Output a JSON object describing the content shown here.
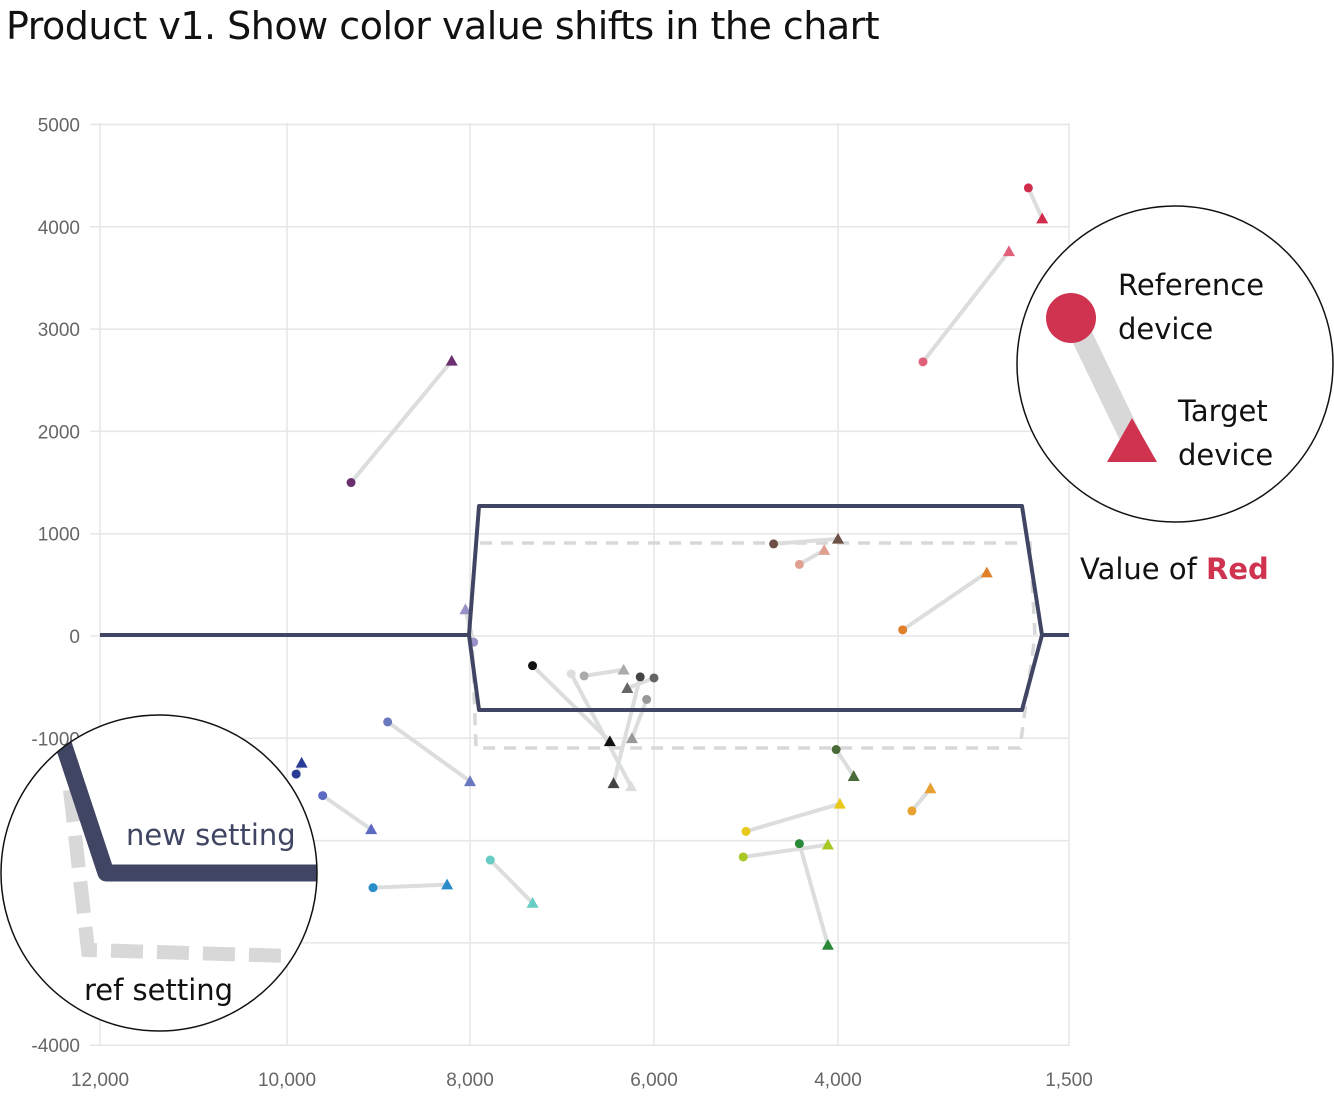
{
  "title": "Product v1. Show color value shifts in the chart",
  "chart_data": {
    "type": "scatter",
    "x_axis": {
      "ticks": [
        12000,
        10000,
        8000,
        6000,
        4000,
        1500
      ],
      "tick_labels": [
        "12,000",
        "10,000",
        "8,000",
        "6,000",
        "4,000",
        "1,500"
      ],
      "reversed": true
    },
    "y_axis": {
      "ticks": [
        5000,
        4000,
        3000,
        2000,
        1000,
        0,
        -1000,
        -4000
      ],
      "tick_labels": [
        "5000",
        "4000",
        "3000",
        "2000",
        "1000",
        "0",
        "-1000",
        "-4000"
      ],
      "ylim": [
        -4000,
        5000
      ]
    },
    "grid": true,
    "shifts": [
      {
        "ref": [
          1940,
          4380
        ],
        "target": [
          1790,
          4080
        ],
        "color": "#d02c4c"
      },
      {
        "ref": [
          3080,
          2680
        ],
        "target": [
          2150,
          3760
        ],
        "color": "#e0607a"
      },
      {
        "ref": [
          9300,
          1500
        ],
        "target": [
          8200,
          2690
        ],
        "color": "#6a2f6e"
      },
      {
        "ref": [
          4700,
          900
        ],
        "target": [
          4000,
          950
        ],
        "color": "#6d5048"
      },
      {
        "ref": [
          4420,
          700
        ],
        "target": [
          4150,
          840
        ],
        "color": "#e0a090"
      },
      {
        "ref": [
          3300,
          60
        ],
        "target": [
          2390,
          620
        ],
        "color": "#e0802a"
      },
      {
        "ref": [
          7960,
          -60
        ],
        "target": [
          8050,
          260
        ],
        "color": "#9a90c8"
      },
      {
        "ref": [
          7320,
          -290
        ],
        "target": [
          6480,
          -1030
        ],
        "color": "#111111"
      },
      {
        "ref": [
          6900,
          -370
        ],
        "target": [
          6250,
          -1470
        ],
        "color": "#dddddd"
      },
      {
        "ref": [
          6760,
          -390
        ],
        "target": [
          6330,
          -330
        ],
        "color": "#aaaaaa"
      },
      {
        "ref": [
          6150,
          -400
        ],
        "target": [
          6440,
          -1440
        ],
        "color": "#444444"
      },
      {
        "ref": [
          6000,
          -410
        ],
        "target": [
          6290,
          -510
        ],
        "color": "#666666"
      },
      {
        "ref": [
          6080,
          -620
        ],
        "target": [
          6240,
          -1000
        ],
        "color": "#999999"
      },
      {
        "ref": [
          8900,
          -840
        ],
        "target": [
          8000,
          -1420
        ],
        "color": "#6a78c0"
      },
      {
        "ref": [
          9900,
          -1350
        ],
        "target": [
          9840,
          -1240
        ],
        "color": "#283c96"
      },
      {
        "ref": [
          9610,
          -1560
        ],
        "target": [
          9080,
          -1890
        ],
        "color": "#5c6ac4"
      },
      {
        "ref": [
          9060,
          -2460
        ],
        "target": [
          8250,
          -2430
        ],
        "color": "#2a8cc8"
      },
      {
        "ref": [
          7780,
          -2190
        ],
        "target": [
          7320,
          -2610
        ],
        "color": "#66ccc4"
      },
      {
        "ref": [
          4020,
          -1110
        ],
        "target": [
          3830,
          -1370
        ],
        "color": "#4a6a3a"
      },
      {
        "ref": [
          5000,
          -1910
        ],
        "target": [
          3980,
          -1640
        ],
        "color": "#e8c81a"
      },
      {
        "ref": [
          5030,
          -2160
        ],
        "target": [
          4110,
          -2040
        ],
        "color": "#a8c826"
      },
      {
        "ref": [
          4420,
          -2030
        ],
        "target": [
          4110,
          -3020
        ],
        "color": "#2a8a3a"
      },
      {
        "ref": [
          3200,
          -1710
        ],
        "target": [
          3000,
          -1490
        ],
        "color": "#e8a030"
      }
    ]
  },
  "legend": {
    "reference_label": [
      "Reference",
      "device"
    ],
    "target_label": [
      "Target",
      "device"
    ],
    "color": "#cf3350"
  },
  "value_label": {
    "prefix": "Value of ",
    "highlight": "Red",
    "highlight_color": "#cf3350"
  },
  "zoom_labels": {
    "new_setting": "new setting",
    "ref_setting": "ref setting"
  },
  "colors": {
    "new_setting_line": "#3f4562",
    "ref_setting_line": "#d8d8d8",
    "connector": "#dcdedd",
    "grid": "#e6e6e6"
  }
}
